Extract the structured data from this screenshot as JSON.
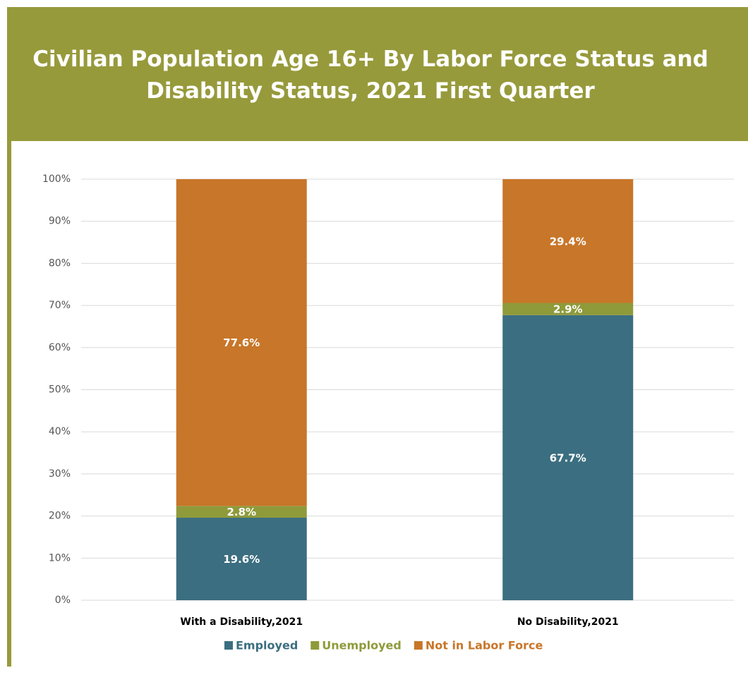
{
  "chart_data": {
    "type": "stacked-bar",
    "title": "Civilian Population Age 16+ By Labor Force Status and Disability Status, 2021 First Quarter",
    "categories": [
      "With a Disability,2021",
      "No Disability,2021"
    ],
    "series": [
      {
        "name": "Employed",
        "color": "#3b6e80",
        "values": [
          19.6,
          67.7
        ],
        "value_labels": [
          "19.6%",
          "67.7%"
        ]
      },
      {
        "name": "Unemployed",
        "color": "#8f9a3a",
        "values": [
          2.8,
          2.9
        ],
        "value_labels": [
          "2.8%",
          "2.9%"
        ]
      },
      {
        "name": "Not in Labor Force",
        "color": "#c87629",
        "values": [
          77.6,
          29.4
        ],
        "value_labels": [
          "77.6%",
          "29.4%"
        ]
      }
    ],
    "ylim": [
      0,
      100
    ],
    "yticks": [
      {
        "value": 0,
        "label": "0%"
      },
      {
        "value": 10,
        "label": "10%"
      },
      {
        "value": 20,
        "label": "20%"
      },
      {
        "value": 30,
        "label": "30%"
      },
      {
        "value": 40,
        "label": "40%"
      },
      {
        "value": 50,
        "label": "50%"
      },
      {
        "value": 60,
        "label": "60%"
      },
      {
        "value": 70,
        "label": "70%"
      },
      {
        "value": 80,
        "label": "80%"
      },
      {
        "value": 90,
        "label": "90%"
      },
      {
        "value": 100,
        "label": "100%"
      }
    ],
    "grid": true
  }
}
